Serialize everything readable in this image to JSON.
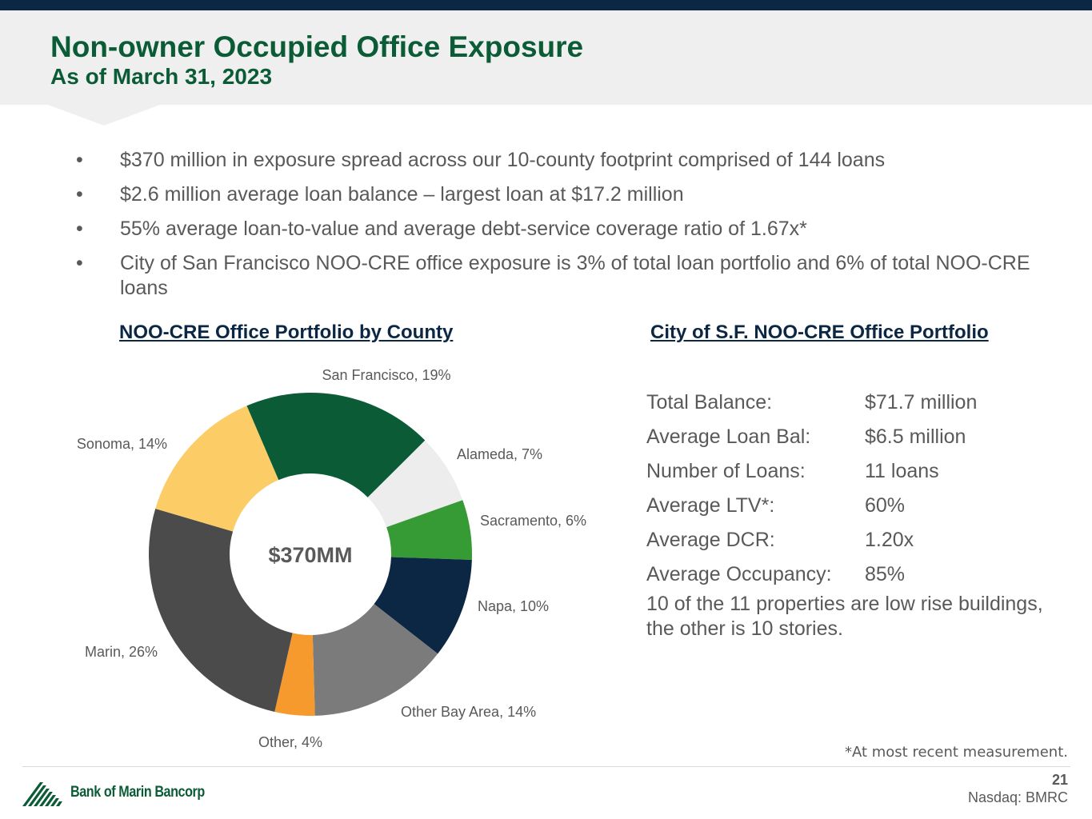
{
  "header": {
    "title": "Non-owner Occupied Office Exposure",
    "subtitle": "As of March 31, 2023"
  },
  "bullets": [
    {
      "symbol": "•",
      "text": "$370 million in exposure spread across our 10-county footprint comprised of 144 loans"
    },
    {
      "symbol": "•",
      "text": "$2.6 million average loan balance – largest loan at $17.2 million"
    },
    {
      "symbol": "•",
      "text": "55% average loan-to-value and average debt-service coverage ratio of 1.67x*"
    },
    {
      "symbol": "•",
      "text": "City of San Francisco NOO-CRE office exposure is 3% of total loan portfolio and 6% of total NOO-CRE loans"
    }
  ],
  "left_section": {
    "title": "NOO-CRE Office Portfolio by County"
  },
  "right_section": {
    "title": "City of S.F. NOO-CRE Office Portfolio",
    "rows": [
      {
        "label": "Total Balance:",
        "value": "$71.7 million"
      },
      {
        "label": "Average Loan Bal:",
        "value": "$6.5 million"
      },
      {
        "label": "Number of Loans:",
        "value": "11 loans"
      },
      {
        "label": "Average LTV*:",
        "value": "60%"
      },
      {
        "label": "Average DCR:",
        "value": "1.20x"
      },
      {
        "label": "Average Occupancy:",
        "value": "85%"
      }
    ],
    "note": "10 of the 11 properties are low rise buildings, the other is 10 stories."
  },
  "chart_data": {
    "type": "pie",
    "variant": "donut",
    "title": "NOO-CRE Office Portfolio by County",
    "center_label": "$370MM",
    "slices": [
      {
        "name": "San Francisco",
        "value": 19,
        "label": "San Francisco, 19%",
        "color": "#0b5c36"
      },
      {
        "name": "Alameda",
        "value": 7,
        "label": "Alameda, 7%",
        "color": "#ededed"
      },
      {
        "name": "Sacramento",
        "value": 6,
        "label": "Sacramento, 6%",
        "color": "#369a35"
      },
      {
        "name": "Napa",
        "value": 10,
        "label": "Napa, 10%",
        "color": "#0b2744"
      },
      {
        "name": "Other Bay Area",
        "value": 14,
        "label": "Other Bay Area, 14%",
        "color": "#7b7b7b"
      },
      {
        "name": "Other",
        "value": 4,
        "label": "Other, 4%",
        "color": "#f69a2d"
      },
      {
        "name": "Marin",
        "value": 26,
        "label": "Marin, 26%",
        "color": "#4b4b4b"
      },
      {
        "name": "Sonoma",
        "value": 14,
        "label": "Sonoma, 14%",
        "color": "#fccc67"
      }
    ]
  },
  "footer": {
    "footnote": "*At most recent measurement.",
    "page_number": "21",
    "ticker": "Nasdaq: BMRC",
    "logo_text": "Bank of Marin Bancorp"
  },
  "colors": {
    "brand_green": "#0b5c36",
    "navy": "#0b2744",
    "text_gray": "#595959",
    "header_band": "#efefef"
  }
}
